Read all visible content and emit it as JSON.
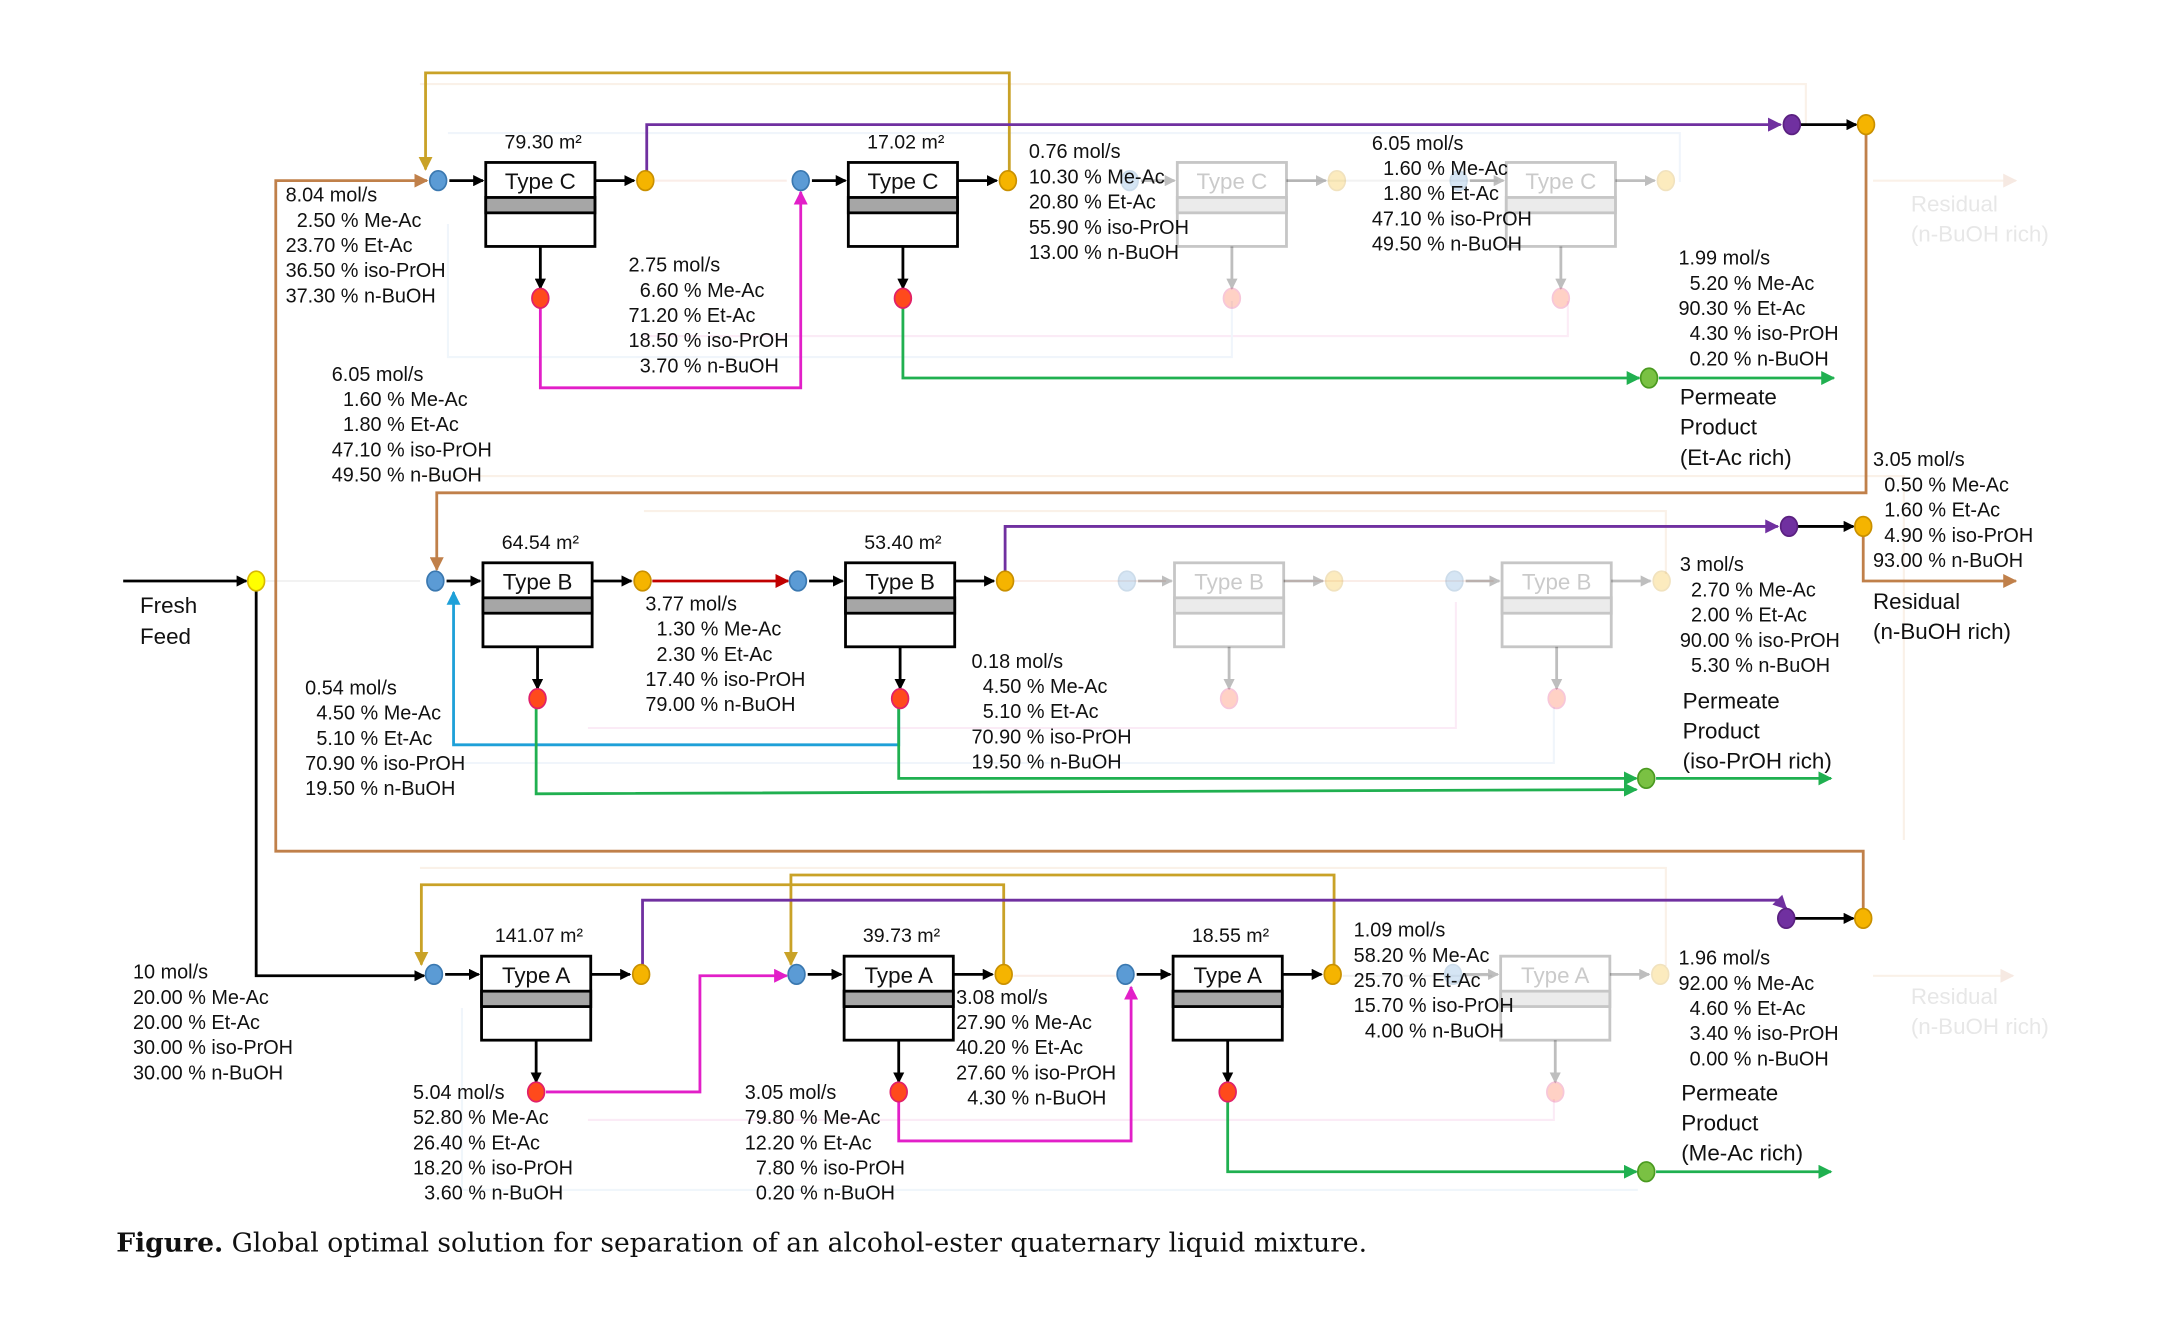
{
  "colors": {
    "mixer": "#5b9bd5",
    "splitter": "#f5b400",
    "permeate_node": "#ff4a1c",
    "product_node": "#7ac143",
    "residual_collector": "#7030a0",
    "feed_splitter": "#ffff00",
    "brown_recycle": "#c0804a",
    "gold_recycle": "#c9a227",
    "purple_retentate": "#7030a0",
    "magenta_permeate": "#e21fc8",
    "red_retentate": "#c00000",
    "cyan_recycle": "#1ea0d8",
    "green_product": "#20b050",
    "gray_membrane": "#a6a6a6"
  },
  "feed": {
    "label_1": "Fresh",
    "label_2": "Feed"
  },
  "units": {
    "c1": {
      "type": "Type C",
      "area": "79.30 m²"
    },
    "c2": {
      "type": "Type C",
      "area": "17.02 m²"
    },
    "c3": {
      "type": "Type C"
    },
    "c4": {
      "type": "Type C"
    },
    "b1": {
      "type": "Type B",
      "area": "64.54 m²"
    },
    "b2": {
      "type": "Type B",
      "area": "53.40 m²"
    },
    "b3": {
      "type": "Type B"
    },
    "b4": {
      "type": "Type B"
    },
    "a1": {
      "type": "Type A",
      "area": "141.07 m²"
    },
    "a2": {
      "type": "Type A",
      "area": "39.73 m²"
    },
    "a3": {
      "type": "Type A",
      "area": "18.55 m²"
    },
    "a4": {
      "type": "Type A"
    }
  },
  "streams": {
    "c_feed": [
      "8.04 mol/s",
      "2.50 % Me-Ac",
      "23.70 % Et-Ac",
      "36.50 % iso-PrOH",
      "37.30 % n-BuOH"
    ],
    "c1_permeate": [
      "2.75 mol/s",
      "6.60 % Me-Ac",
      "71.20 % Et-Ac",
      "18.50 % iso-PrOH",
      "3.70 % n-BuOH"
    ],
    "c2_retentate": [
      "0.76 mol/s",
      "10.30 % Me-Ac",
      "20.80 % Et-Ac",
      "55.90 % iso-PrOH",
      "13.00 % n-BuOH"
    ],
    "c_residual_left": [
      "6.05 mol/s",
      "1.60 % Me-Ac",
      "1.80 % Et-Ac",
      "47.10 % iso-PrOH",
      "49.50 % n-BuOH"
    ],
    "c_residual_right": [
      "6.05 mol/s",
      "1.60 % Me-Ac",
      "1.80 % Et-Ac",
      "47.10 % iso-PrOH",
      "49.50 % n-BuOH"
    ],
    "c_permeate_product": [
      "1.99 mol/s",
      "5.20 % Me-Ac",
      "90.30 % Et-Ac",
      "4.30 % iso-PrOH",
      "0.20 % n-BuOH"
    ],
    "b_residual": [
      "3.05 mol/s",
      "0.50 % Me-Ac",
      "1.60 % Et-Ac",
      "4.90 % iso-PrOH",
      "93.00 % n-BuOH"
    ],
    "b1_retentate": [
      "3.77 mol/s",
      "1.30 % Me-Ac",
      "2.30 % Et-Ac",
      "17.40 % iso-PrOH",
      "79.00 % n-BuOH"
    ],
    "b2_recycle": [
      "0.54 mol/s",
      "4.50 % Me-Ac",
      "5.10 % Et-Ac",
      "70.90 % iso-PrOH",
      "19.50 % n-BuOH"
    ],
    "b2_retentate": [
      "0.18 mol/s",
      "4.50 % Me-Ac",
      "5.10 % Et-Ac",
      "70.90 % iso-PrOH",
      "19.50 % n-BuOH"
    ],
    "b_permeate_product": [
      "3 mol/s",
      "2.70 % Me-Ac",
      "2.00 % Et-Ac",
      "90.00 % iso-PrOH",
      "5.30 % n-BuOH"
    ],
    "fresh_feed": [
      "10 mol/s",
      "20.00 % Me-Ac",
      "20.00 % Et-Ac",
      "30.00 % iso-PrOH",
      "30.00 % n-BuOH"
    ],
    "a1_permeate": [
      "5.04 mol/s",
      "52.80 % Me-Ac",
      "26.40 % Et-Ac",
      "18.20 % iso-PrOH",
      "3.60 % n-BuOH"
    ],
    "a2_permeate": [
      "3.05 mol/s",
      "79.80 % Me-Ac",
      "12.20 % Et-Ac",
      "7.80 % iso-PrOH",
      "0.20 % n-BuOH"
    ],
    "a2_retentate": [
      "3.08 mol/s",
      "27.90 % Me-Ac",
      "40.20 % Et-Ac",
      "27.60 % iso-PrOH",
      "4.30 % n-BuOH"
    ],
    "a3_retentate": [
      "1.09 mol/s",
      "58.20 % Me-Ac",
      "25.70 % Et-Ac",
      "15.70 % iso-PrOH",
      "4.00 % n-BuOH"
    ],
    "a_permeate_product": [
      "1.96 mol/s",
      "92.00 % Me-Ac",
      "4.60 % Et-Ac",
      "3.40 % iso-PrOH",
      "0.00 % n-BuOH"
    ]
  },
  "products": {
    "et_ac": [
      "Permeate",
      "Product",
      "(Et-Ac rich)"
    ],
    "iso_proh": [
      "Permeate",
      "Product",
      "(iso-PrOH rich)"
    ],
    "me_ac": [
      "Permeate",
      "Product",
      "(Me-Ac rich)"
    ],
    "residual": [
      "Residual",
      "(n-BuOH rich)"
    ],
    "residual_faint_c": [
      "Residual",
      "(n-BuOH rich)"
    ],
    "residual_faint_a": [
      "Residual",
      "(n-BuOH rich)"
    ]
  },
  "caption": {
    "bold": "Figure.",
    "text": " Global optimal solution for separation of an alcohol-ester quaternary liquid mixture."
  }
}
